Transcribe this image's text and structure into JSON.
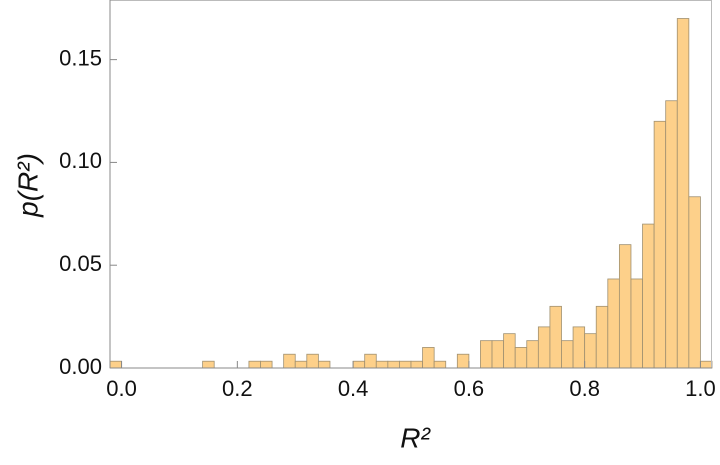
{
  "chart_data": {
    "type": "histogram",
    "x_label": "R²",
    "y_label": "p(R²)",
    "bins": [
      -0.02,
      0,
      0.02,
      0.04,
      0.06,
      0.08,
      0.1,
      0.12,
      0.14,
      0.16,
      0.18,
      0.2,
      0.22,
      0.24,
      0.26,
      0.28,
      0.3,
      0.32,
      0.34,
      0.36,
      0.38,
      0.4,
      0.42,
      0.44,
      0.46,
      0.48,
      0.5,
      0.52,
      0.54,
      0.56,
      0.58,
      0.6,
      0.62,
      0.64,
      0.66,
      0.68,
      0.7,
      0.72,
      0.74,
      0.76,
      0.78,
      0.8,
      0.82,
      0.84,
      0.86,
      0.88,
      0.9,
      0.92,
      0.94,
      0.96,
      0.98,
      1.0,
      1.02
    ],
    "values": [
      0.0033,
      0,
      0,
      0,
      0,
      0,
      0,
      0,
      0.0033,
      0,
      0,
      0,
      0.0033,
      0.0033,
      0,
      0.0067,
      0.0033,
      0.0067,
      0.0033,
      0,
      0,
      0.0033,
      0.0067,
      0.0033,
      0.0033,
      0.0033,
      0.0033,
      0.01,
      0.0033,
      0,
      0.0067,
      0,
      0.0133,
      0.0133,
      0.0167,
      0.01,
      0.0133,
      0.02,
      0.03,
      0.0133,
      0.02,
      0.0167,
      0.03,
      0.0433,
      0.06,
      0.0433,
      0.07,
      0.12,
      0.13,
      0.17,
      0.0833,
      0.0033
    ],
    "color": "#fdd08a",
    "xlim": [
      -0.02,
      1.02
    ],
    "ylim": [
      0,
      0.179
    ],
    "xticks": [
      {
        "value": 0,
        "label": "0.0"
      },
      0.2,
      0.4,
      0.6,
      0.8,
      {
        "value": 1,
        "label": "1.0"
      }
    ],
    "yticks": [
      {
        "value": 0,
        "label": "0.00"
      },
      {
        "value": 0.05,
        "label": "0.05"
      },
      {
        "value": 0.1,
        "label": "0.10"
      },
      {
        "value": 0.15,
        "label": "0.15"
      }
    ]
  }
}
